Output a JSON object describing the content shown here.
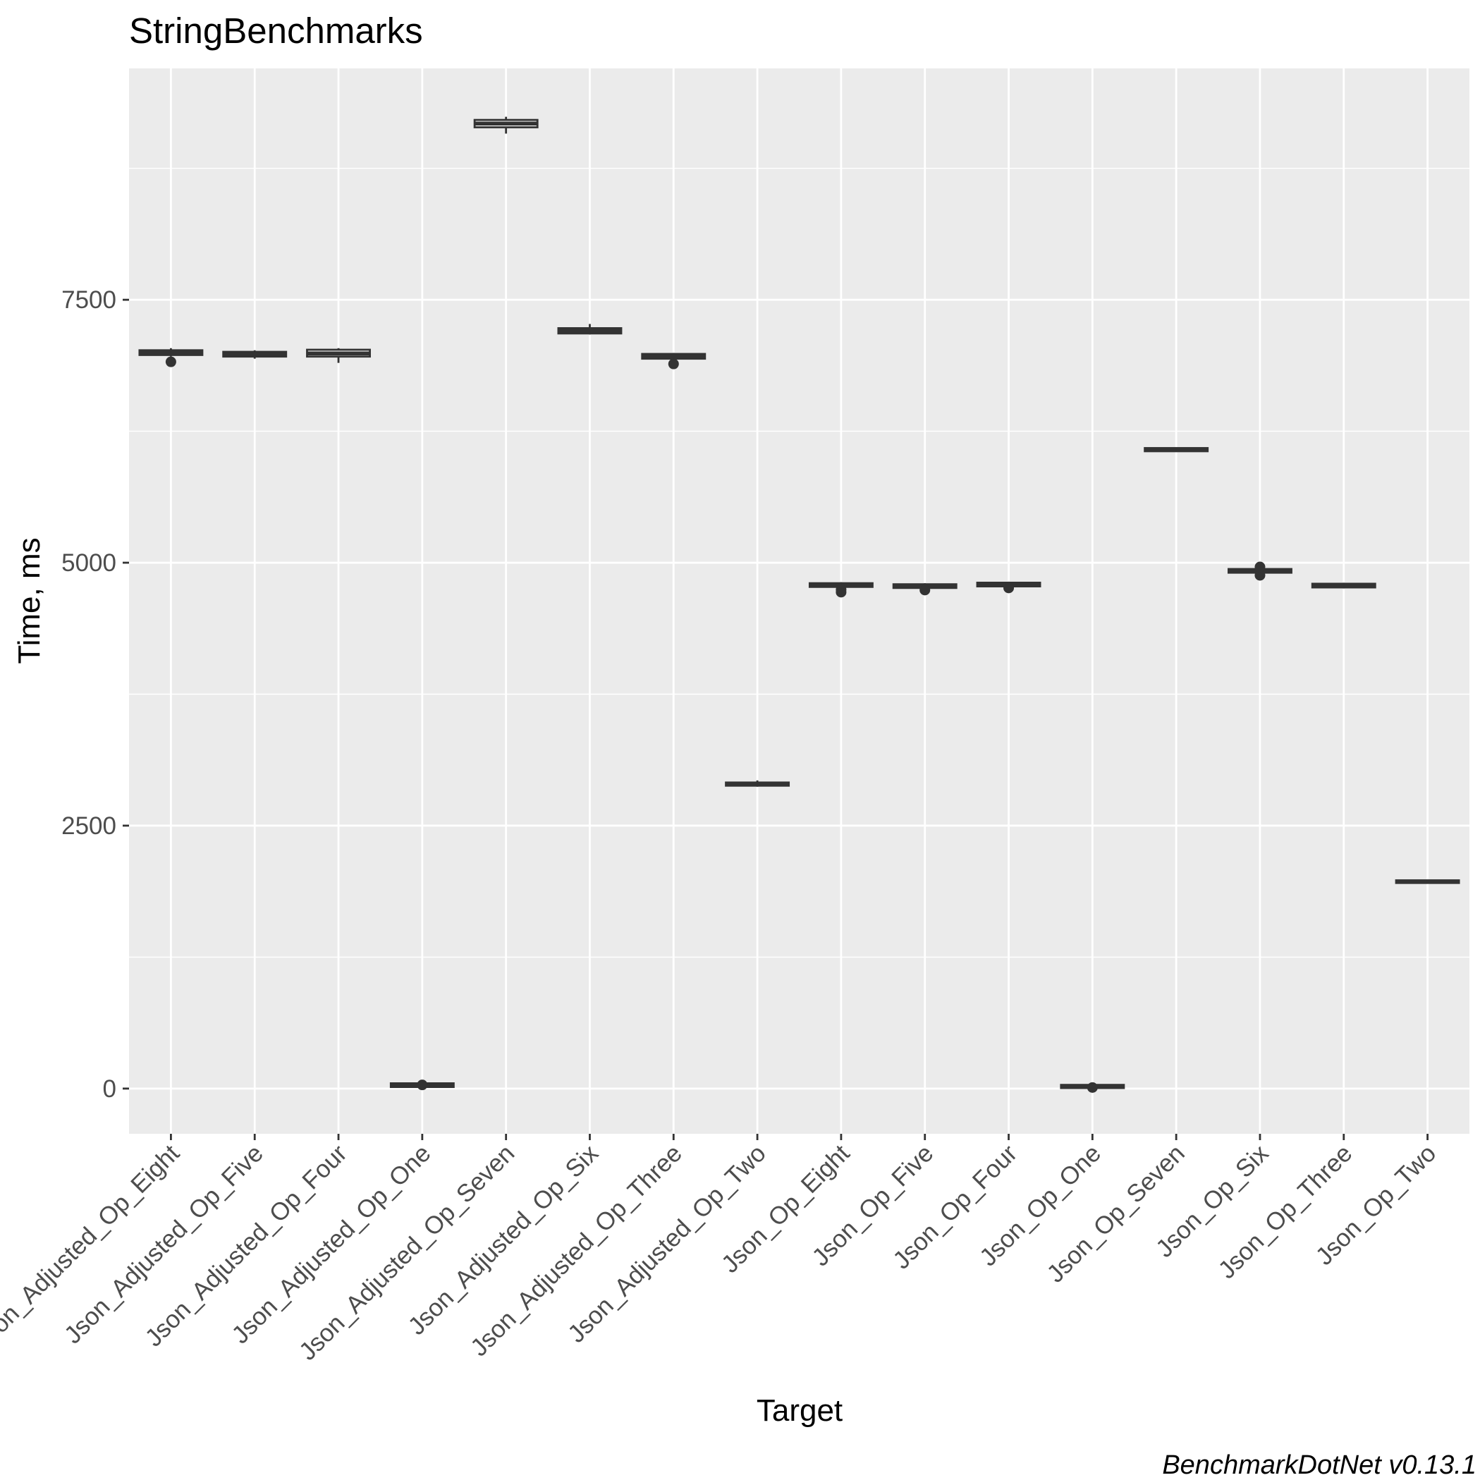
{
  "chart_data": {
    "type": "box",
    "title": "StringBenchmarks",
    "xlabel": "Target",
    "ylabel": "Time, ms",
    "caption": "BenchmarkDotNet v0.13.1",
    "ylim": [
      -430,
      9700
    ],
    "y_ticks": [
      0,
      2500,
      5000,
      7500
    ],
    "y_tick_labels": [
      "0",
      "2500",
      "5000",
      "7500"
    ],
    "grid": true,
    "categories": [
      "Json_Adjusted_Op_Eight",
      "Json_Adjusted_Op_Five",
      "Json_Adjusted_Op_Four",
      "Json_Adjusted_Op_One",
      "Json_Adjusted_Op_Seven",
      "Json_Adjusted_Op_Six",
      "Json_Adjusted_Op_Three",
      "Json_Adjusted_Op_Two",
      "Json_Op_Eight",
      "Json_Op_Five",
      "Json_Op_Four",
      "Json_Op_One",
      "Json_Op_Seven",
      "Json_Op_Six",
      "Json_Op_Three",
      "Json_Op_Two"
    ],
    "boxes": [
      {
        "q1": 6975,
        "median": 7000,
        "q3": 7020,
        "whisker_low": 6960,
        "whisker_high": 7040,
        "outliers": [
          6910
        ]
      },
      {
        "q1": 6960,
        "median": 6985,
        "q3": 7005,
        "whisker_low": 6940,
        "whisker_high": 7020,
        "outliers": []
      },
      {
        "q1": 6960,
        "median": 6990,
        "q3": 7025,
        "whisker_low": 6900,
        "whisker_high": 7040,
        "outliers": []
      },
      {
        "q1": 15,
        "median": 30,
        "q3": 50,
        "whisker_low": 5,
        "whisker_high": 60,
        "outliers": [
          35
        ]
      },
      {
        "q1": 9140,
        "median": 9175,
        "q3": 9210,
        "whisker_low": 9080,
        "whisker_high": 9240,
        "outliers": []
      },
      {
        "q1": 7180,
        "median": 7205,
        "q3": 7230,
        "whisker_low": 7170,
        "whisker_high": 7270,
        "outliers": []
      },
      {
        "q1": 6940,
        "median": 6960,
        "q3": 6985,
        "whisker_low": 6930,
        "whisker_high": 6995,
        "outliers": [
          6890
        ]
      },
      {
        "q1": 2880,
        "median": 2895,
        "q3": 2910,
        "whisker_low": 2870,
        "whisker_high": 2930,
        "outliers": []
      },
      {
        "q1": 4770,
        "median": 4785,
        "q3": 4805,
        "whisker_low": 4760,
        "whisker_high": 4815,
        "outliers": [
          4720,
          4745
        ]
      },
      {
        "q1": 4760,
        "median": 4775,
        "q3": 4795,
        "whisker_low": 4750,
        "whisker_high": 4805,
        "outliers": [
          4740
        ]
      },
      {
        "q1": 4775,
        "median": 4790,
        "q3": 4810,
        "whisker_low": 4765,
        "whisker_high": 4820,
        "outliers": [
          4760
        ]
      },
      {
        "q1": 5,
        "median": 15,
        "q3": 35,
        "whisker_low": 0,
        "whisker_high": 40,
        "outliers": [
          10
        ]
      },
      {
        "q1": 6060,
        "median": 6075,
        "q3": 6090,
        "whisker_low": 6055,
        "whisker_high": 6095,
        "outliers": []
      },
      {
        "q1": 4905,
        "median": 4920,
        "q3": 4940,
        "whisker_low": 4890,
        "whisker_high": 4950,
        "outliers": [
          4880,
          4960
        ]
      },
      {
        "q1": 4765,
        "median": 4780,
        "q3": 4800,
        "whisker_low": 4755,
        "whisker_high": 4810,
        "outliers": []
      },
      {
        "q1": 1955,
        "median": 1965,
        "q3": 1980,
        "whisker_low": 1950,
        "whisker_high": 1985,
        "outliers": []
      }
    ],
    "colors": {
      "panel": "#ebebeb",
      "grid_major": "#ffffff",
      "box_fill": "#ffffff",
      "box_line": "#333333",
      "tick_text": "#4d4d4d",
      "tick_mark": "#333333"
    }
  }
}
